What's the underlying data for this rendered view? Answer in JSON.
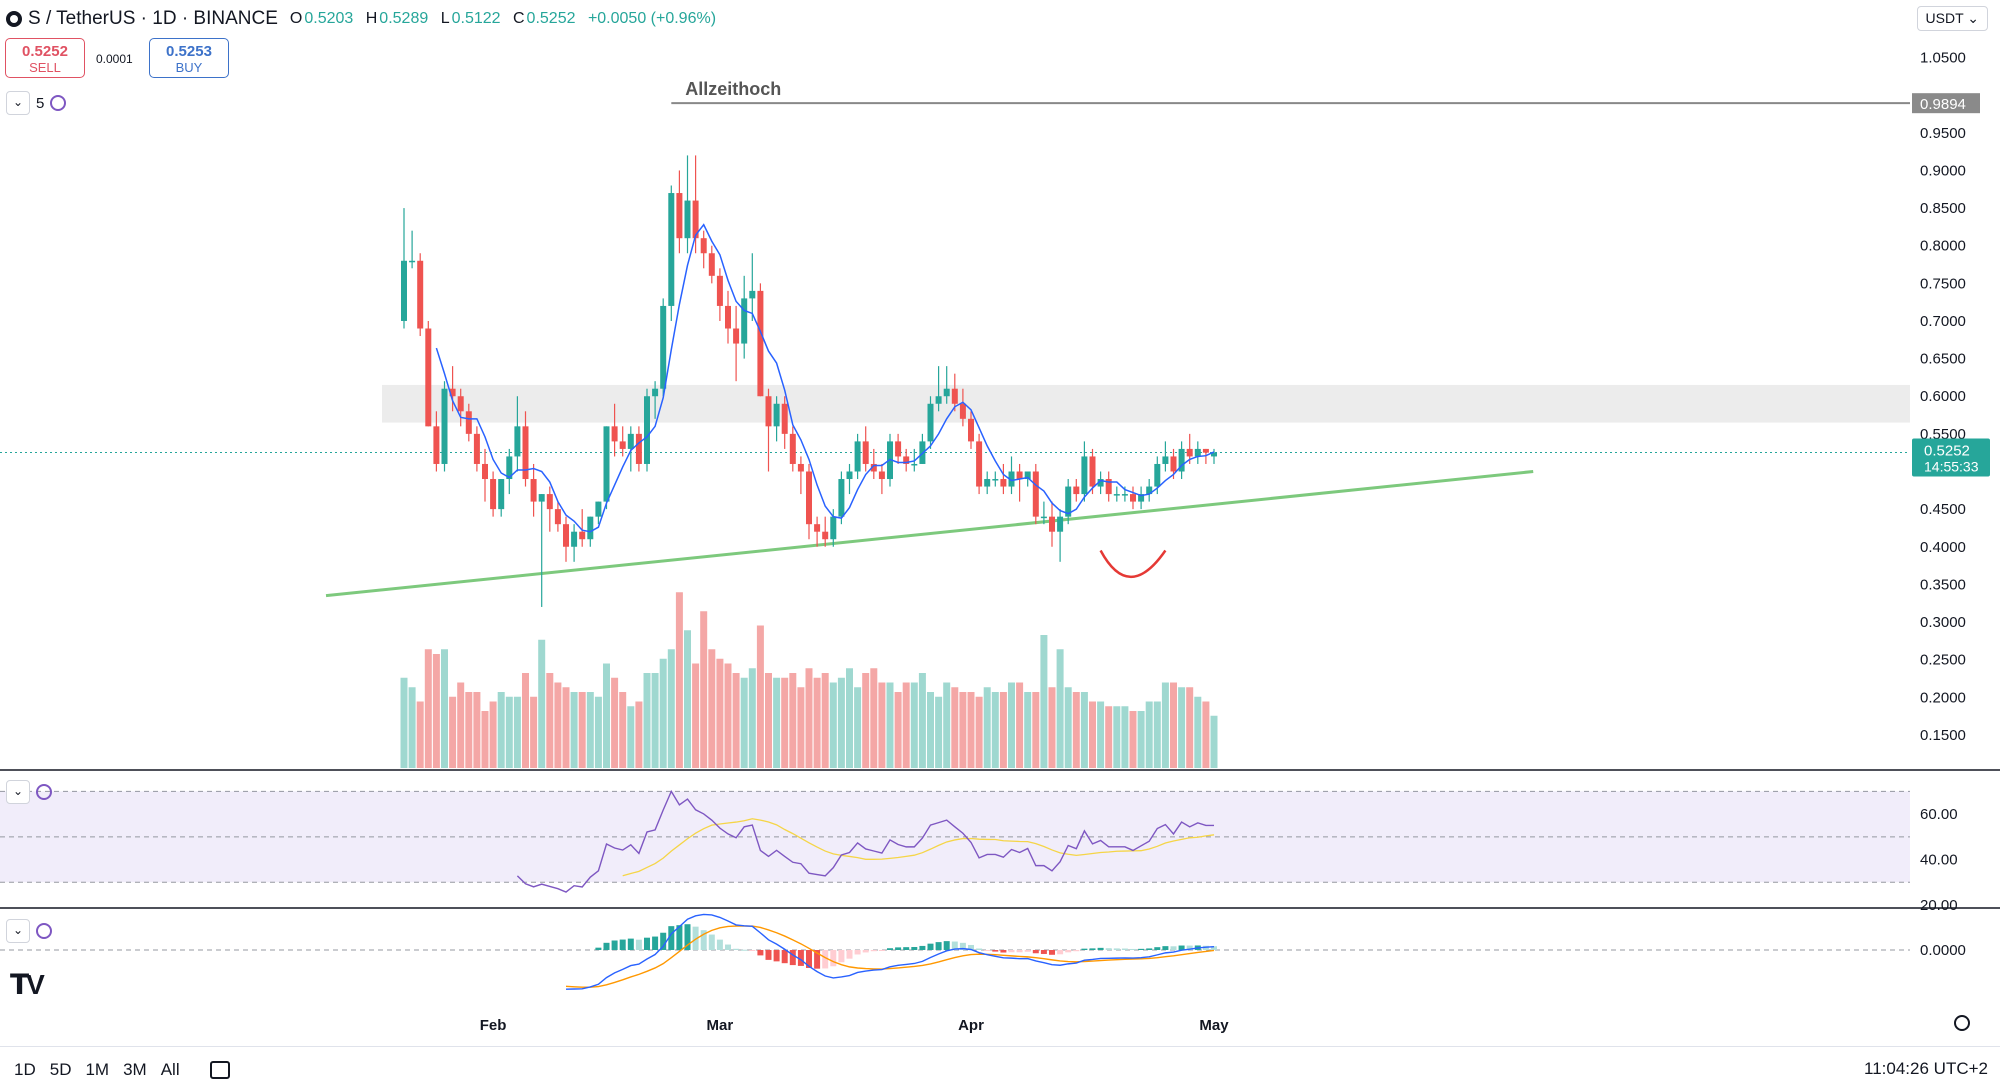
{
  "header": {
    "symbol": "S / TetherUS · 1D · BINANCE",
    "open_label": "O",
    "open": "0.5203",
    "high_label": "H",
    "high": "0.5289",
    "low_label": "L",
    "low": "0.5122",
    "close_label": "C",
    "close": "0.5252",
    "change": "+0.0050 (+0.96%)"
  },
  "trade": {
    "sell_price": "0.5252",
    "sell_label": "SELL",
    "spread": "0.0001",
    "buy_price": "0.5253",
    "buy_label": "BUY"
  },
  "currency": "USDT",
  "interval_control": "5",
  "timeframes": [
    "1D",
    "5D",
    "1M",
    "3M",
    "All"
  ],
  "clock": "11:04:26 UTC+2",
  "colors": {
    "up": "#26a69a",
    "down": "#ef5350",
    "ma": "#2962ff",
    "trend": "#7dc97d",
    "rsi": "#7e57c2",
    "rsi_ma": "#f5d547",
    "macd_fast": "#2962ff",
    "macd_slow": "#ff9800"
  },
  "chart_data": {
    "type": "candlestick",
    "annotation_ath": "Allzeithoch",
    "ath_level": 0.9894,
    "ath_label": "0.9894",
    "current_price": 0.5252,
    "current_label": "0.5252",
    "countdown_label": "14:55:33",
    "resistance_zone": [
      0.565,
      0.615
    ],
    "y_range": [
      0.11,
      1.08
    ],
    "y_ticks": [
      "1.0500",
      "0.9500",
      "0.9000",
      "0.8500",
      "0.8000",
      "0.7500",
      "0.7000",
      "0.6500",
      "0.6000",
      "0.5500",
      "0.4500",
      "0.4000",
      "0.3500",
      "0.3000",
      "0.2500",
      "0.2000",
      "0.1500"
    ],
    "x_labels": [
      {
        "label": "Feb",
        "index": 11
      },
      {
        "label": "Mar",
        "index": 39
      },
      {
        "label": "Apr",
        "index": 70
      },
      {
        "label": "May",
        "index": 100
      }
    ],
    "trendline": {
      "start_index": 0,
      "start_value": 0.335,
      "end_index": 132,
      "end_value": 0.5
    },
    "ohlc": [
      [
        0.7,
        0.85,
        0.69,
        0.78
      ],
      [
        0.78,
        0.82,
        0.77,
        0.78
      ],
      [
        0.78,
        0.79,
        0.68,
        0.69
      ],
      [
        0.69,
        0.7,
        0.56,
        0.56
      ],
      [
        0.56,
        0.58,
        0.5,
        0.51
      ],
      [
        0.51,
        0.62,
        0.5,
        0.61
      ],
      [
        0.61,
        0.64,
        0.58,
        0.6
      ],
      [
        0.6,
        0.61,
        0.56,
        0.58
      ],
      [
        0.58,
        0.59,
        0.54,
        0.55
      ],
      [
        0.55,
        0.56,
        0.5,
        0.51
      ],
      [
        0.51,
        0.53,
        0.46,
        0.49
      ],
      [
        0.49,
        0.5,
        0.44,
        0.45
      ],
      [
        0.45,
        0.49,
        0.44,
        0.49
      ],
      [
        0.49,
        0.53,
        0.47,
        0.52
      ],
      [
        0.52,
        0.6,
        0.5,
        0.56
      ],
      [
        0.56,
        0.58,
        0.48,
        0.49
      ],
      [
        0.49,
        0.51,
        0.44,
        0.46
      ],
      [
        0.46,
        0.47,
        0.32,
        0.47
      ],
      [
        0.47,
        0.48,
        0.42,
        0.45
      ],
      [
        0.45,
        0.46,
        0.42,
        0.43
      ],
      [
        0.43,
        0.44,
        0.38,
        0.4
      ],
      [
        0.4,
        0.43,
        0.38,
        0.42
      ],
      [
        0.42,
        0.45,
        0.4,
        0.41
      ],
      [
        0.41,
        0.44,
        0.4,
        0.44
      ],
      [
        0.44,
        0.46,
        0.43,
        0.46
      ],
      [
        0.46,
        0.56,
        0.45,
        0.56
      ],
      [
        0.56,
        0.59,
        0.52,
        0.54
      ],
      [
        0.54,
        0.56,
        0.52,
        0.53
      ],
      [
        0.53,
        0.56,
        0.5,
        0.55
      ],
      [
        0.55,
        0.56,
        0.5,
        0.51
      ],
      [
        0.51,
        0.61,
        0.5,
        0.6
      ],
      [
        0.6,
        0.62,
        0.57,
        0.61
      ],
      [
        0.61,
        0.73,
        0.6,
        0.72
      ],
      [
        0.72,
        0.88,
        0.7,
        0.87
      ],
      [
        0.87,
        0.9,
        0.79,
        0.81
      ],
      [
        0.81,
        0.92,
        0.79,
        0.86
      ],
      [
        0.86,
        0.92,
        0.79,
        0.81
      ],
      [
        0.81,
        0.82,
        0.77,
        0.79
      ],
      [
        0.79,
        0.8,
        0.75,
        0.76
      ],
      [
        0.76,
        0.77,
        0.7,
        0.72
      ],
      [
        0.72,
        0.74,
        0.67,
        0.69
      ],
      [
        0.69,
        0.72,
        0.62,
        0.67
      ],
      [
        0.67,
        0.76,
        0.65,
        0.73
      ],
      [
        0.73,
        0.79,
        0.7,
        0.74
      ],
      [
        0.74,
        0.75,
        0.6,
        0.6
      ],
      [
        0.6,
        0.61,
        0.5,
        0.56
      ],
      [
        0.56,
        0.6,
        0.54,
        0.59
      ],
      [
        0.59,
        0.6,
        0.53,
        0.55
      ],
      [
        0.55,
        0.56,
        0.5,
        0.51
      ],
      [
        0.51,
        0.52,
        0.47,
        0.5
      ],
      [
        0.5,
        0.51,
        0.41,
        0.43
      ],
      [
        0.43,
        0.44,
        0.4,
        0.42
      ],
      [
        0.42,
        0.44,
        0.4,
        0.41
      ],
      [
        0.41,
        0.45,
        0.4,
        0.44
      ],
      [
        0.44,
        0.5,
        0.43,
        0.49
      ],
      [
        0.49,
        0.51,
        0.47,
        0.5
      ],
      [
        0.5,
        0.55,
        0.49,
        0.54
      ],
      [
        0.54,
        0.56,
        0.5,
        0.51
      ],
      [
        0.51,
        0.53,
        0.49,
        0.5
      ],
      [
        0.5,
        0.51,
        0.47,
        0.49
      ],
      [
        0.49,
        0.55,
        0.48,
        0.54
      ],
      [
        0.54,
        0.55,
        0.51,
        0.52
      ],
      [
        0.52,
        0.53,
        0.5,
        0.51
      ],
      [
        0.51,
        0.53,
        0.5,
        0.51
      ],
      [
        0.51,
        0.55,
        0.51,
        0.54
      ],
      [
        0.54,
        0.6,
        0.53,
        0.59
      ],
      [
        0.59,
        0.64,
        0.58,
        0.6
      ],
      [
        0.6,
        0.64,
        0.59,
        0.61
      ],
      [
        0.61,
        0.63,
        0.58,
        0.59
      ],
      [
        0.59,
        0.61,
        0.56,
        0.57
      ],
      [
        0.57,
        0.58,
        0.53,
        0.54
      ],
      [
        0.54,
        0.55,
        0.47,
        0.48
      ],
      [
        0.48,
        0.5,
        0.47,
        0.49
      ],
      [
        0.49,
        0.5,
        0.48,
        0.49
      ],
      [
        0.49,
        0.51,
        0.47,
        0.48
      ],
      [
        0.48,
        0.52,
        0.47,
        0.5
      ],
      [
        0.5,
        0.51,
        0.46,
        0.49
      ],
      [
        0.49,
        0.5,
        0.48,
        0.5
      ],
      [
        0.5,
        0.51,
        0.43,
        0.44
      ],
      [
        0.44,
        0.46,
        0.43,
        0.44
      ],
      [
        0.44,
        0.46,
        0.4,
        0.42
      ],
      [
        0.42,
        0.45,
        0.38,
        0.44
      ],
      [
        0.44,
        0.49,
        0.43,
        0.48
      ],
      [
        0.48,
        0.49,
        0.46,
        0.47
      ],
      [
        0.47,
        0.54,
        0.46,
        0.52
      ],
      [
        0.52,
        0.53,
        0.47,
        0.48
      ],
      [
        0.48,
        0.5,
        0.47,
        0.49
      ],
      [
        0.49,
        0.5,
        0.46,
        0.47
      ],
      [
        0.47,
        0.48,
        0.46,
        0.47
      ],
      [
        0.47,
        0.48,
        0.46,
        0.47
      ],
      [
        0.47,
        0.48,
        0.45,
        0.46
      ],
      [
        0.46,
        0.48,
        0.45,
        0.47
      ],
      [
        0.47,
        0.49,
        0.46,
        0.48
      ],
      [
        0.48,
        0.52,
        0.47,
        0.51
      ],
      [
        0.51,
        0.54,
        0.5,
        0.52
      ],
      [
        0.52,
        0.53,
        0.49,
        0.5
      ],
      [
        0.5,
        0.54,
        0.49,
        0.53
      ],
      [
        0.53,
        0.55,
        0.51,
        0.52
      ],
      [
        0.52,
        0.54,
        0.51,
        0.53
      ],
      [
        0.53,
        0.53,
        0.51,
        0.525
      ],
      [
        0.52,
        0.53,
        0.51,
        0.525
      ]
    ],
    "volume": [
      0.19,
      0.17,
      0.14,
      0.25,
      0.24,
      0.25,
      0.15,
      0.18,
      0.16,
      0.16,
      0.12,
      0.14,
      0.16,
      0.15,
      0.15,
      0.2,
      0.15,
      0.27,
      0.2,
      0.18,
      0.17,
      0.16,
      0.16,
      0.16,
      0.15,
      0.22,
      0.19,
      0.16,
      0.13,
      0.14,
      0.2,
      0.2,
      0.23,
      0.25,
      0.37,
      0.29,
      0.22,
      0.33,
      0.25,
      0.23,
      0.22,
      0.2,
      0.19,
      0.21,
      0.3,
      0.2,
      0.19,
      0.19,
      0.2,
      0.17,
      0.21,
      0.19,
      0.2,
      0.18,
      0.19,
      0.21,
      0.17,
      0.2,
      0.21,
      0.18,
      0.18,
      0.16,
      0.18,
      0.18,
      0.2,
      0.16,
      0.15,
      0.18,
      0.17,
      0.16,
      0.16,
      0.15,
      0.17,
      0.16,
      0.16,
      0.18,
      0.18,
      0.16,
      0.16,
      0.28,
      0.17,
      0.25,
      0.17,
      0.16,
      0.16,
      0.14,
      0.14,
      0.13,
      0.13,
      0.13,
      0.12,
      0.12,
      0.14,
      0.14,
      0.18,
      0.18,
      0.17,
      0.17,
      0.15,
      0.14,
      0.11
    ],
    "ma_period": 5,
    "rsi": {
      "y_ticks": [
        "60.00",
        "40.00",
        "20.00"
      ],
      "levels": [
        70,
        50,
        30
      ],
      "range": [
        20,
        75
      ]
    },
    "macd": {
      "y_ticks": [
        "0.0000"
      ]
    }
  }
}
